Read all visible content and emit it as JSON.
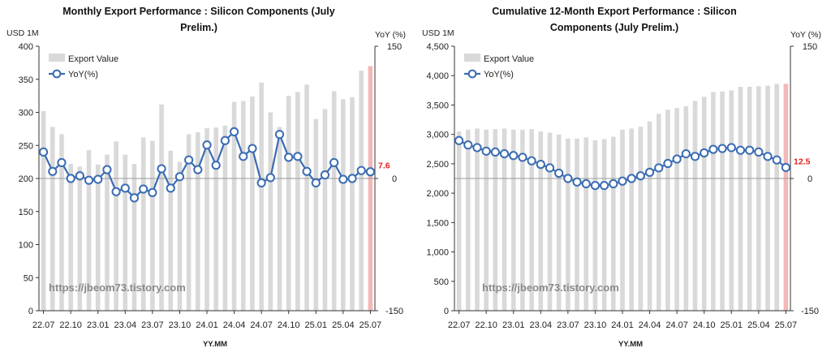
{
  "watermark": "https://jbeom73.tistory.com",
  "chart_data": [
    {
      "type": "bar+line",
      "title": "Monthly Export Performance : Silicon Components (July Prelim.)",
      "left_unit": "USD 1M",
      "right_unit": "YoY (%)",
      "xlabel": "YY.MM",
      "ylim": [
        0,
        400
      ],
      "y2lim": [
        -150,
        150
      ],
      "yticks": [
        "0",
        "50",
        "100",
        "150",
        "200",
        "250",
        "300",
        "350",
        "400"
      ],
      "y2ticks": [
        "-150",
        "0",
        "150"
      ],
      "x_tick_labels": [
        "22.07",
        "22.10",
        "23.01",
        "23.04",
        "23.07",
        "23.10",
        "24.01",
        "24.04",
        "24.07",
        "24.10",
        "25.01",
        "25.04",
        "25.07"
      ],
      "categories": [
        "22.07",
        "22.08",
        "22.09",
        "22.10",
        "22.11",
        "22.12",
        "23.01",
        "23.02",
        "23.03",
        "23.04",
        "23.05",
        "23.06",
        "23.07",
        "23.08",
        "23.09",
        "23.10",
        "23.11",
        "23.12",
        "24.01",
        "24.02",
        "24.03",
        "24.04",
        "24.05",
        "24.06",
        "24.07",
        "24.08",
        "24.09",
        "24.10",
        "24.11",
        "24.12",
        "25.01",
        "25.02",
        "25.03",
        "25.04",
        "25.05",
        "25.06",
        "25.07"
      ],
      "legend": [
        "Export Value",
        "YoY(%)"
      ],
      "last_label": "7.6",
      "grid": false,
      "series": [
        {
          "name": "Export Value",
          "kind": "bar",
          "axis": "left",
          "values": [
            302,
            278,
            267,
            222,
            218,
            243,
            221,
            236,
            256,
            236,
            222,
            262,
            257,
            312,
            242,
            225,
            267,
            270,
            276,
            277,
            280,
            316,
            317,
            324,
            345,
            300,
            278,
            325,
            331,
            342,
            290,
            305,
            332,
            320,
            323,
            363,
            370
          ]
        },
        {
          "name": "YoY(%)",
          "kind": "line",
          "axis": "right",
          "values": [
            30,
            8,
            18,
            0,
            3,
            -2,
            -1,
            10,
            -15,
            -11,
            -22,
            -12,
            -16,
            11,
            -11,
            2,
            21,
            10,
            38,
            15,
            43,
            53,
            25,
            34,
            -5,
            1,
            50,
            24,
            25,
            8,
            -5,
            4,
            18,
            -1,
            0,
            9,
            7.6
          ]
        }
      ]
    },
    {
      "type": "bar+line",
      "title": "Cumulative 12-Month Export Performance : Silicon Components (July Prelim.)",
      "left_unit": "USD 1M",
      "right_unit": "YoY (%)",
      "xlabel": "YY.MM",
      "ylim": [
        0,
        4500
      ],
      "y2lim": [
        -150,
        150
      ],
      "yticks": [
        "0",
        "500",
        "1,000",
        "1,500",
        "2,000",
        "2,500",
        "3,000",
        "3,500",
        "4,000",
        "4,500"
      ],
      "y2ticks": [
        "-150",
        "0",
        "150"
      ],
      "x_tick_labels": [
        "22.07",
        "22.10",
        "23.01",
        "23.04",
        "23.07",
        "23.10",
        "24.01",
        "24.04",
        "24.07",
        "24.10",
        "25.01",
        "25.04",
        "25.07"
      ],
      "categories": [
        "22.07",
        "22.08",
        "22.09",
        "22.10",
        "22.11",
        "22.12",
        "23.01",
        "23.02",
        "23.03",
        "23.04",
        "23.05",
        "23.06",
        "23.07",
        "23.08",
        "23.09",
        "23.10",
        "23.11",
        "23.12",
        "24.01",
        "24.02",
        "24.03",
        "24.04",
        "24.05",
        "24.06",
        "24.07",
        "24.08",
        "24.09",
        "24.10",
        "24.11",
        "24.12",
        "25.01",
        "25.02",
        "25.03",
        "25.04",
        "25.05",
        "25.06",
        "25.07"
      ],
      "legend": [
        "Export Value",
        "YoY(%)"
      ],
      "last_label": "12.5",
      "grid": false,
      "series": [
        {
          "name": "Export Value",
          "kind": "bar",
          "axis": "left",
          "values": [
            3050,
            3080,
            3100,
            3080,
            3090,
            3100,
            3080,
            3080,
            3090,
            3050,
            3030,
            3000,
            2930,
            2930,
            2950,
            2900,
            2920,
            2960,
            3080,
            3100,
            3130,
            3220,
            3350,
            3420,
            3450,
            3480,
            3570,
            3640,
            3720,
            3730,
            3750,
            3810,
            3810,
            3820,
            3830,
            3860,
            3860
          ]
        },
        {
          "name": "YoY(%)",
          "kind": "line",
          "axis": "right",
          "values": [
            43,
            38,
            35,
            31,
            30,
            28,
            26,
            24,
            20,
            16,
            12,
            6,
            0,
            -4,
            -6,
            -8,
            -8,
            -6,
            -3,
            0,
            3,
            7,
            12,
            17,
            22,
            28,
            25,
            29,
            33,
            34,
            35,
            32,
            32,
            30,
            25,
            21,
            12.5
          ]
        }
      ]
    }
  ]
}
